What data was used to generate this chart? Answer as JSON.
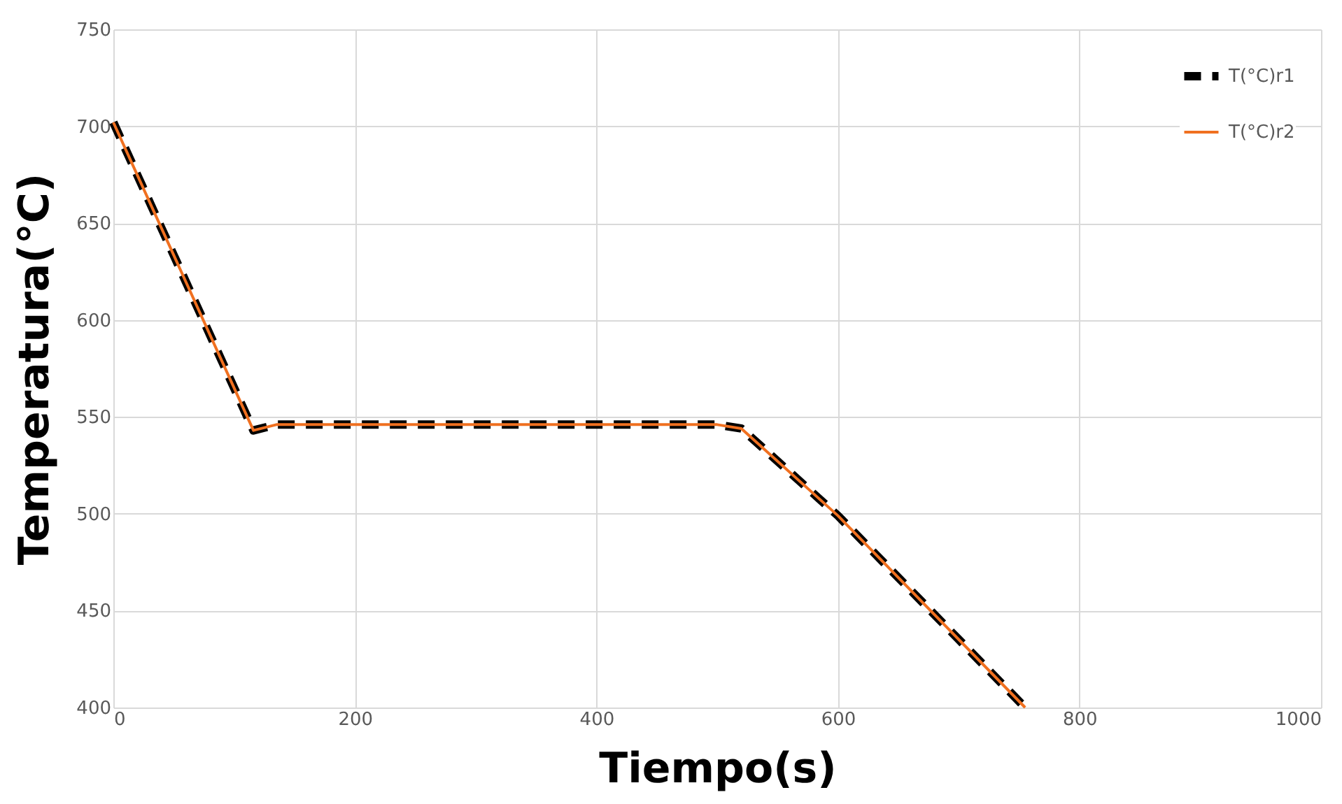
{
  "chart_data": {
    "type": "line",
    "xlabel": "Tiempo(s)",
    "ylabel": "Temperatura(°C)",
    "xlim": [
      0,
      1000
    ],
    "xticks": [
      0,
      200,
      400,
      600,
      800,
      1000
    ],
    "ylim": [
      400,
      750
    ],
    "yticks": [
      400,
      450,
      500,
      550,
      600,
      650,
      700,
      750
    ],
    "grid": true,
    "legend": "top right",
    "marker": "none",
    "series": [
      {
        "name": "T(°C)r1",
        "color": "#000000",
        "line_style": "dashed",
        "x": [
          0,
          116,
          135,
          300,
          500,
          520,
          600,
          755
        ],
        "values": [
          702,
          543,
          546,
          546,
          546,
          544,
          499,
          400
        ]
      },
      {
        "name": "T(°C)r2",
        "color": "#f07020",
        "line_style": "solid",
        "x": [
          0,
          116,
          135,
          300,
          500,
          520,
          600,
          755
        ],
        "values": [
          702,
          543,
          546,
          546,
          546,
          544,
          499,
          400
        ]
      }
    ]
  }
}
